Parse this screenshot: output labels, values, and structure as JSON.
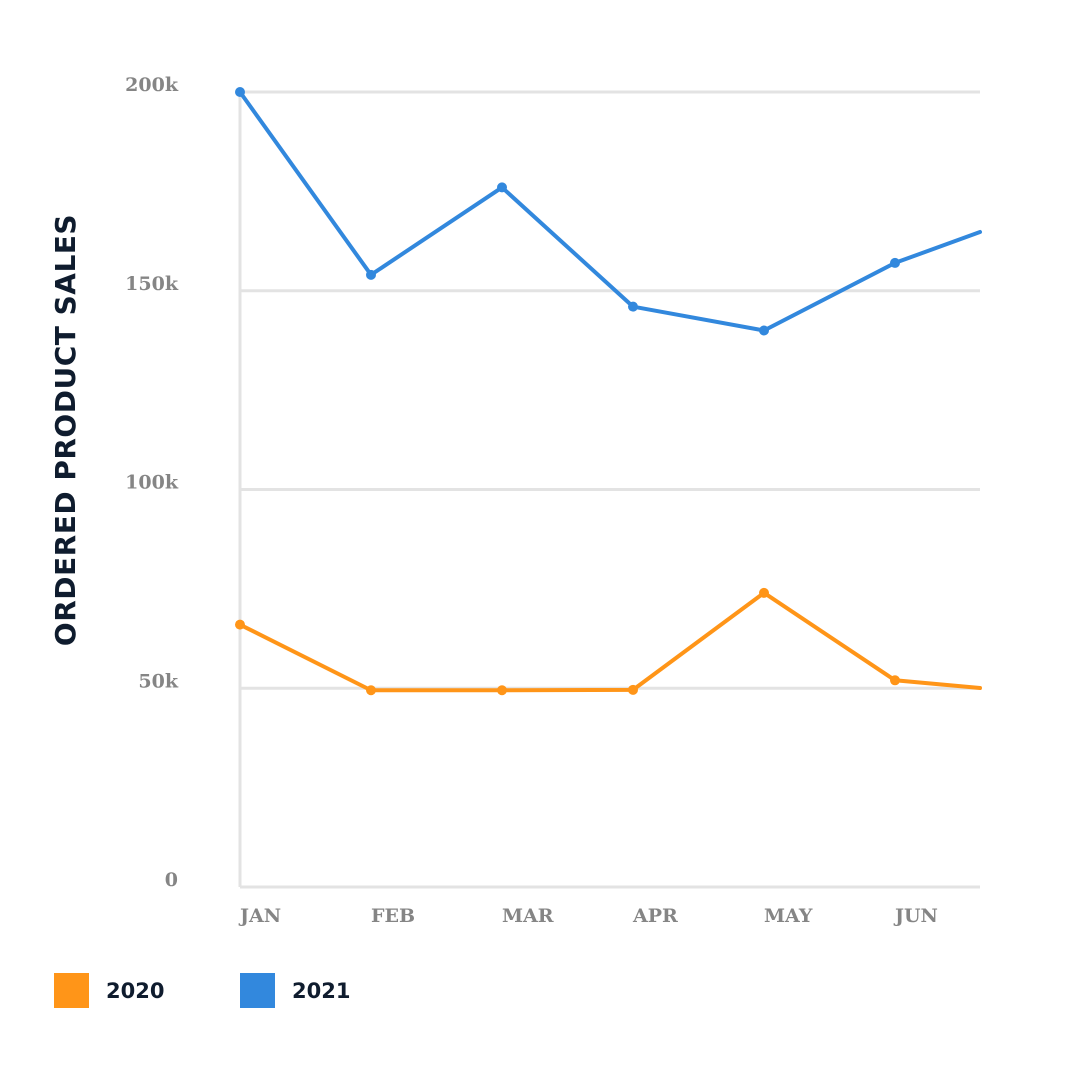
{
  "chart_data": {
    "type": "line",
    "title": "",
    "xlabel": "",
    "ylabel": "ORDERED PRODUCT SALES",
    "categories": [
      "JAN",
      "FEB",
      "MAR",
      "APR",
      "MAY",
      "JUN"
    ],
    "y_ticks": [
      {
        "value": 0,
        "label": "0"
      },
      {
        "value": 50000,
        "label": "50k"
      },
      {
        "value": 100000,
        "label": "100k"
      },
      {
        "value": 150000,
        "label": "150k"
      },
      {
        "value": 200000,
        "label": "200k"
      }
    ],
    "ylim": [
      0,
      200000
    ],
    "grid": true,
    "legend_position": "bottom-left",
    "series": [
      {
        "name": "2020",
        "color": "#ff9518",
        "values": [
          66000,
          49500,
          49500,
          49600,
          74000,
          52000
        ],
        "trailing_value": 49000
      },
      {
        "name": "2021",
        "color": "#3288dd",
        "values": [
          200000,
          154000,
          176000,
          146000,
          140000,
          157000
        ],
        "trailing_value": 169000
      }
    ]
  }
}
